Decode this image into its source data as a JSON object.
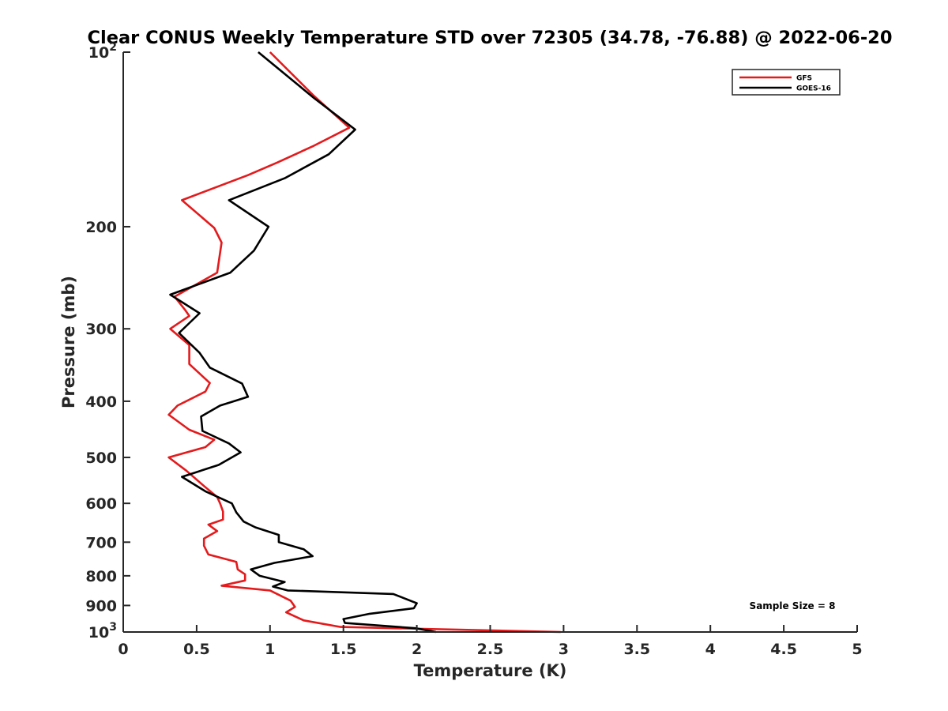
{
  "chart_data": {
    "type": "line",
    "title": "Clear CONUS Weekly Temperature STD over 72305 (34.78, -76.88) @ 2022-06-20",
    "xlabel": "Temperature (K)",
    "ylabel": "Pressure (mb)",
    "xlim": [
      0,
      5
    ],
    "ylim": [
      100,
      1000
    ],
    "y_scale": "log",
    "y_reversed": true,
    "grid": false,
    "legend_position": "top-right",
    "x_ticks": [
      {
        "value": 0,
        "label": "0"
      },
      {
        "value": 0.5,
        "label": "0.5"
      },
      {
        "value": 1,
        "label": "1"
      },
      {
        "value": 1.5,
        "label": "1.5"
      },
      {
        "value": 2,
        "label": "2"
      },
      {
        "value": 2.5,
        "label": "2.5"
      },
      {
        "value": 3,
        "label": "3"
      },
      {
        "value": 3.5,
        "label": "3.5"
      },
      {
        "value": 4,
        "label": "4"
      },
      {
        "value": 4.5,
        "label": "4.5"
      },
      {
        "value": 5,
        "label": "5"
      }
    ],
    "y_ticks": [
      {
        "value": 100,
        "label": "10",
        "sup": "2"
      },
      {
        "value": 200,
        "label": "200",
        "sup": ""
      },
      {
        "value": 300,
        "label": "300",
        "sup": ""
      },
      {
        "value": 400,
        "label": "400",
        "sup": ""
      },
      {
        "value": 500,
        "label": "500",
        "sup": ""
      },
      {
        "value": 600,
        "label": "600",
        "sup": ""
      },
      {
        "value": 700,
        "label": "700",
        "sup": ""
      },
      {
        "value": 800,
        "label": "800",
        "sup": ""
      },
      {
        "value": 900,
        "label": "900",
        "sup": ""
      },
      {
        "value": 1000,
        "label": "10",
        "sup": "3"
      }
    ],
    "annotation": "Sample Size = 8",
    "series": [
      {
        "name": "GFS",
        "color": "#e41a1c",
        "points": [
          [
            1.0,
            100
          ],
          [
            1.3,
            119
          ],
          [
            1.54,
            135
          ],
          [
            1.3,
            145
          ],
          [
            1.05,
            155
          ],
          [
            0.85,
            163
          ],
          [
            0.4,
            180
          ],
          [
            0.62,
            201
          ],
          [
            0.67,
            213
          ],
          [
            0.64,
            240
          ],
          [
            0.35,
            264
          ],
          [
            0.42,
            278
          ],
          [
            0.45,
            285
          ],
          [
            0.32,
            300
          ],
          [
            0.45,
            320
          ],
          [
            0.45,
            345
          ],
          [
            0.59,
            372
          ],
          [
            0.56,
            385
          ],
          [
            0.37,
            407
          ],
          [
            0.31,
            422
          ],
          [
            0.45,
            448
          ],
          [
            0.62,
            466
          ],
          [
            0.56,
            480
          ],
          [
            0.31,
            500
          ],
          [
            0.43,
            527
          ],
          [
            0.55,
            560
          ],
          [
            0.64,
            585
          ],
          [
            0.66,
            600
          ],
          [
            0.68,
            620
          ],
          [
            0.68,
            640
          ],
          [
            0.58,
            653
          ],
          [
            0.64,
            670
          ],
          [
            0.55,
            690
          ],
          [
            0.55,
            710
          ],
          [
            0.58,
            735
          ],
          [
            0.77,
            757
          ],
          [
            0.78,
            780
          ],
          [
            0.83,
            795
          ],
          [
            0.83,
            815
          ],
          [
            0.67,
            832
          ],
          [
            1.0,
            848
          ],
          [
            1.14,
            883
          ],
          [
            1.17,
            905
          ],
          [
            1.11,
            925
          ],
          [
            1.23,
            955
          ],
          [
            1.48,
            980
          ],
          [
            2.98,
            1000
          ]
        ]
      },
      {
        "name": "GOES-16",
        "color": "#000000",
        "points": [
          [
            0.92,
            100
          ],
          [
            1.3,
            120
          ],
          [
            1.58,
            136
          ],
          [
            1.4,
            150
          ],
          [
            1.1,
            165
          ],
          [
            0.72,
            180
          ],
          [
            0.99,
            200
          ],
          [
            0.89,
            220
          ],
          [
            0.73,
            240
          ],
          [
            0.32,
            262
          ],
          [
            0.52,
            282
          ],
          [
            0.38,
            305
          ],
          [
            0.52,
            330
          ],
          [
            0.59,
            350
          ],
          [
            0.81,
            373
          ],
          [
            0.85,
            393
          ],
          [
            0.66,
            407
          ],
          [
            0.53,
            425
          ],
          [
            0.54,
            450
          ],
          [
            0.72,
            473
          ],
          [
            0.8,
            490
          ],
          [
            0.65,
            515
          ],
          [
            0.4,
            540
          ],
          [
            0.56,
            572
          ],
          [
            0.74,
            600
          ],
          [
            0.77,
            622
          ],
          [
            0.82,
            645
          ],
          [
            0.9,
            660
          ],
          [
            1.06,
            680
          ],
          [
            1.06,
            700
          ],
          [
            1.23,
            720
          ],
          [
            1.29,
            740
          ],
          [
            1.03,
            760
          ],
          [
            0.87,
            780
          ],
          [
            0.93,
            800
          ],
          [
            1.1,
            820
          ],
          [
            1.02,
            835
          ],
          [
            1.12,
            848
          ],
          [
            1.84,
            860
          ],
          [
            2.0,
            892
          ],
          [
            1.98,
            910
          ],
          [
            1.68,
            930
          ],
          [
            1.5,
            950
          ],
          [
            1.51,
            965
          ],
          [
            1.99,
            985
          ],
          [
            2.13,
            1000
          ]
        ]
      }
    ]
  }
}
